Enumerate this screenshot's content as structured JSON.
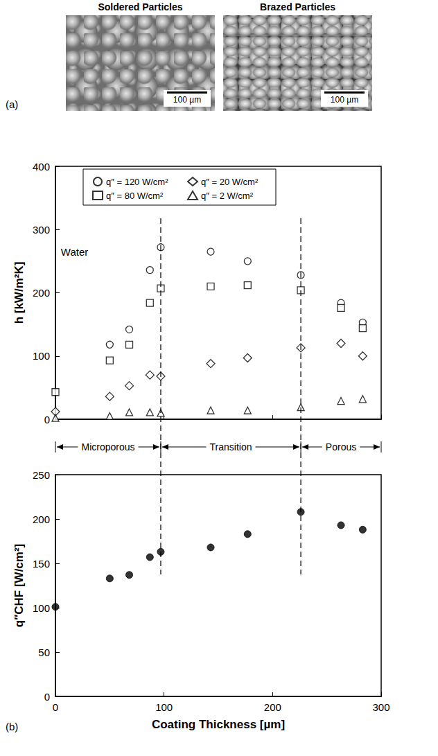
{
  "panel_labels": [
    "(a)",
    "(b)"
  ],
  "images": [
    {
      "title": "Soldered Particles",
      "scale_bar": "100 µm"
    },
    {
      "title": "Brazed Particles",
      "scale_bar": "100 µm"
    }
  ],
  "regions": [
    {
      "label": "Microporous",
      "from": 0,
      "to": 97
    },
    {
      "label": "Transition",
      "from": 97,
      "to": 226
    },
    {
      "label": "Porous",
      "from": 226,
      "to": 300
    }
  ],
  "chart_data": [
    {
      "type": "scatter",
      "y_label": "h [kW/m²K]",
      "xlim": [
        0,
        300
      ],
      "xticks": [
        0,
        100,
        200,
        300
      ],
      "ylim": [
        0,
        400
      ],
      "yticks": [
        0,
        100,
        200,
        300,
        400
      ],
      "tick_labels": "y",
      "grid": false,
      "legend": "upper left",
      "annotations": [
        {
          "text": "Water",
          "x": 5,
          "y": 265
        }
      ],
      "series": [
        {
          "name": "q″ = 120 W/cm²",
          "marker": "open_circle",
          "color": "#000000",
          "x": [
            50,
            68,
            87,
            97,
            143,
            177,
            226,
            263,
            283
          ],
          "values": [
            118,
            142,
            236,
            272,
            265,
            250,
            228,
            184,
            153
          ]
        },
        {
          "name": "q″ = 80 W/cm²",
          "marker": "open_square",
          "color": "#000000",
          "x": [
            0,
            50,
            68,
            87,
            97,
            143,
            177,
            226,
            263,
            283
          ],
          "values": [
            43,
            93,
            118,
            184,
            207,
            210,
            212,
            204,
            176,
            144
          ]
        },
        {
          "name": "q″ = 20 W/cm²",
          "marker": "open_diamond",
          "color": "#000000",
          "x": [
            0,
            50,
            68,
            87,
            97,
            143,
            177,
            226,
            263,
            283
          ],
          "values": [
            12,
            36,
            53,
            70,
            68,
            88,
            97,
            113,
            120,
            100
          ]
        },
        {
          "name": "q″ = 2 W/cm²",
          "marker": "open_triangle",
          "color": "#000000",
          "x": [
            0,
            50,
            68,
            87,
            97,
            143,
            177,
            226,
            263,
            283
          ],
          "values": [
            2,
            5,
            11,
            11,
            10,
            14,
            14,
            19,
            29,
            32
          ]
        }
      ]
    },
    {
      "type": "scatter",
      "x_label": "Coating Thickness [µm]",
      "y_label": "q″CHF [W/cm²]",
      "xlim": [
        0,
        300
      ],
      "xticks": [
        0,
        100,
        200,
        300
      ],
      "ylim": [
        0,
        250
      ],
      "yticks": [
        0,
        50,
        100,
        150,
        200,
        250
      ],
      "grid": false,
      "marker": "circle",
      "color": "#000000",
      "x": [
        0,
        50,
        68,
        87,
        97,
        143,
        177,
        226,
        263,
        283
      ],
      "values": [
        101,
        133,
        137,
        157,
        163,
        168,
        183,
        208,
        193,
        188
      ]
    }
  ]
}
